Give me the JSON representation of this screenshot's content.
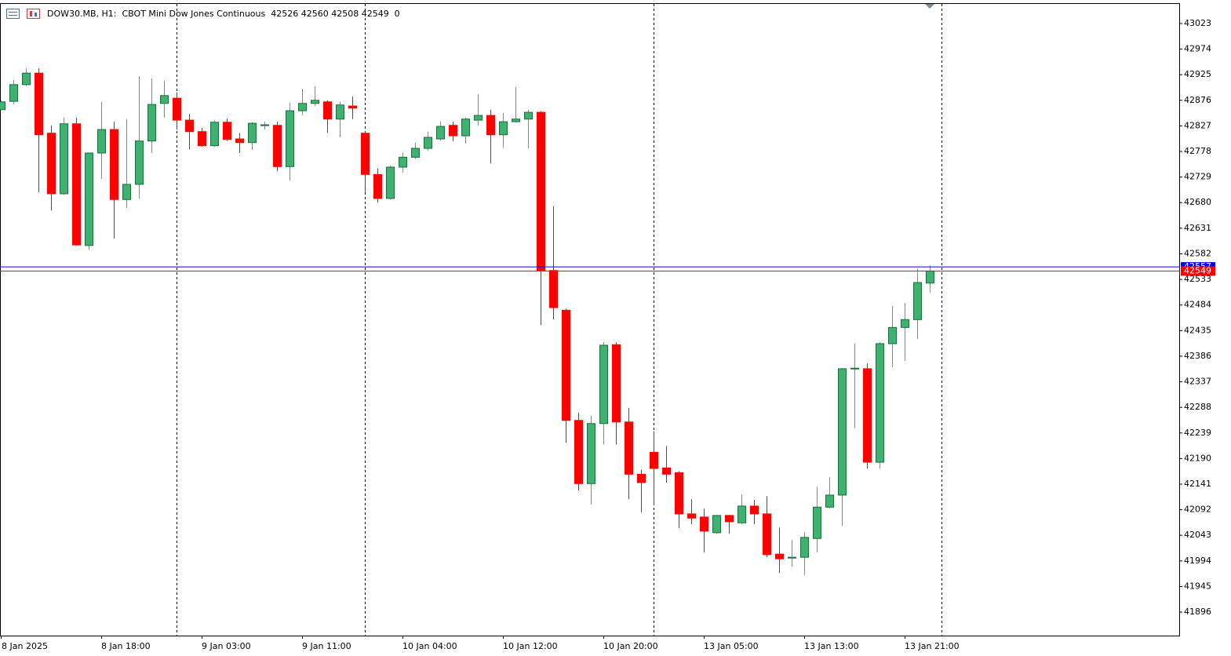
{
  "chart_data": {
    "type": "candlestick",
    "title": "DOW30.MB, H1:  CBOT Mini Dow Jones Continuous  42526 42560 42508 42549  0",
    "up_color": "#3cb371",
    "down_color": "#ff0000",
    "ylim": [
      41851,
      43062
    ],
    "yticks": [
      43023,
      42974,
      42925,
      42876,
      42827,
      42778,
      42729,
      42680,
      42631,
      42582,
      42533,
      42484,
      42435,
      42386,
      42337,
      42288,
      42239,
      42190,
      42141,
      42092,
      42043,
      41994,
      41945,
      41896
    ],
    "price_lines": [
      {
        "value": 42557,
        "color": "#0000ff"
      },
      {
        "value": 42549,
        "color": "#ff0000"
      }
    ],
    "categories": [
      "8 Jan 2025",
      null,
      null,
      null,
      null,
      null,
      null,
      null,
      "8 Jan 18:00",
      null,
      null,
      null,
      null,
      null,
      null,
      null,
      "9 Jan 03:00",
      null,
      null,
      null,
      null,
      null,
      null,
      null,
      "9 Jan 11:00",
      null,
      null,
      null,
      null,
      null,
      null,
      null,
      "10 Jan 04:00",
      null,
      null,
      null,
      null,
      null,
      null,
      null,
      "10 Jan 12:00",
      null,
      null,
      null,
      null,
      null,
      null,
      null,
      "10 Jan 20:00",
      null,
      null,
      null,
      null,
      null,
      null,
      null,
      "13 Jan 05:00",
      null,
      null,
      null,
      null,
      null,
      null,
      null,
      "13 Jan 13:00",
      null,
      null,
      null,
      null,
      null,
      null,
      null,
      "13 Jan 21:00",
      null,
      null
    ],
    "ohlc": [
      [
        42858,
        42876,
        42858,
        42873
      ],
      [
        42874,
        42915,
        42868,
        42906
      ],
      [
        42906,
        42937,
        42903,
        42928
      ],
      [
        42928,
        42937,
        42700,
        42810
      ],
      [
        42813,
        42828,
        42665,
        42697
      ],
      [
        42697,
        42843,
        42695,
        42831
      ],
      [
        42831,
        42843,
        42598,
        42599
      ],
      [
        42598,
        42775,
        42590,
        42775
      ],
      [
        42775,
        42873,
        42725,
        42820
      ],
      [
        42820,
        42835,
        42611,
        42686
      ],
      [
        42686,
        42840,
        42670,
        42715
      ],
      [
        42715,
        42922,
        42688,
        42798
      ],
      [
        42798,
        42918,
        42775,
        42868
      ],
      [
        42870,
        42913,
        42843,
        42885
      ],
      [
        42880,
        42891,
        42820,
        42838
      ],
      [
        42838,
        42850,
        42782,
        42816
      ],
      [
        42816,
        42823,
        42787,
        42789
      ],
      [
        42789,
        42838,
        42787,
        42834
      ],
      [
        42834,
        42841,
        42798,
        42801
      ],
      [
        42802,
        42813,
        42775,
        42795
      ],
      [
        42795,
        42834,
        42781,
        42832
      ],
      [
        42828,
        42835,
        42820,
        42829
      ],
      [
        42828,
        42835,
        42740,
        42749
      ],
      [
        42749,
        42871,
        42722,
        42856
      ],
      [
        42856,
        42898,
        42847,
        42870
      ],
      [
        42870,
        42903,
        42865,
        42876
      ],
      [
        42873,
        42876,
        42813,
        42840
      ],
      [
        42840,
        42873,
        42805,
        42867
      ],
      [
        42865,
        42883,
        42840,
        42861
      ],
      [
        42813,
        42816,
        42700,
        42734
      ],
      [
        42734,
        42746,
        42680,
        42688
      ],
      [
        42688,
        42751,
        42686,
        42748
      ],
      [
        42748,
        42776,
        42737,
        42767
      ],
      [
        42767,
        42795,
        42764,
        42784
      ],
      [
        42784,
        42816,
        42779,
        42805
      ],
      [
        42802,
        42835,
        42799,
        42826
      ],
      [
        42828,
        42835,
        42798,
        42808
      ],
      [
        42808,
        42843,
        42793,
        42840
      ],
      [
        42838,
        42888,
        42828,
        42847
      ],
      [
        42847,
        42858,
        42755,
        42810
      ],
      [
        42810,
        42852,
        42785,
        42835
      ],
      [
        42835,
        42901,
        42834,
        42840
      ],
      [
        42840,
        42858,
        42784,
        42853
      ],
      [
        42853,
        42855,
        42446,
        42550
      ],
      [
        42550,
        42673,
        42456,
        42479
      ],
      [
        42474,
        42477,
        42220,
        42263
      ],
      [
        42263,
        42278,
        42129,
        42142
      ],
      [
        42142,
        42272,
        42102,
        42257
      ],
      [
        42257,
        42413,
        42217,
        42407
      ],
      [
        42408,
        42413,
        42217,
        42260
      ],
      [
        42260,
        42287,
        42112,
        42160
      ],
      [
        42160,
        42169,
        42087,
        42144
      ],
      [
        42202,
        42242,
        42102,
        42171
      ],
      [
        42172,
        42214,
        42144,
        42160
      ],
      [
        42163,
        42166,
        42057,
        42084
      ],
      [
        42084,
        42112,
        42064,
        42076
      ],
      [
        42078,
        42094,
        42010,
        42051
      ],
      [
        42048,
        42082,
        42046,
        42081
      ],
      [
        42081,
        42082,
        42046,
        42069
      ],
      [
        42067,
        42121,
        42064,
        42099
      ],
      [
        42099,
        42111,
        42064,
        42084
      ],
      [
        42084,
        42118,
        42001,
        42006
      ],
      [
        42007,
        42058,
        41971,
        41998
      ],
      [
        42000,
        42034,
        41983,
        42001
      ],
      [
        42001,
        42049,
        41967,
        42039
      ],
      [
        42037,
        42136,
        42010,
        42097
      ],
      [
        42097,
        42154,
        42094,
        42120
      ],
      [
        42120,
        42363,
        42061,
        42362
      ],
      [
        42362,
        42411,
        42248,
        42363
      ],
      [
        42362,
        42372,
        42171,
        42183
      ],
      [
        42183,
        42413,
        42171,
        42410
      ],
      [
        42410,
        42482,
        42365,
        42441
      ],
      [
        42441,
        42488,
        42377,
        42456
      ],
      [
        42456,
        42553,
        42419,
        42527
      ],
      [
        42526,
        42560,
        42508,
        42549
      ]
    ]
  }
}
